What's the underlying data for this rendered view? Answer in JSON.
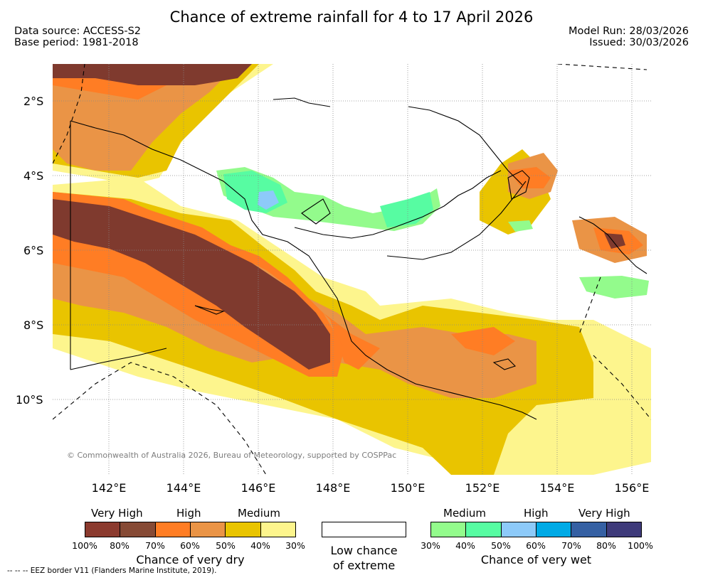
{
  "title": "Chance of extreme rainfall for 4 to 17 April 2026",
  "meta": {
    "data_source": "Data source: ACCESS-S2",
    "base_period": "Base period: 1981-2018",
    "model_run": "Model Run: 28/03/2026",
    "issued": "Issued: 30/03/2026"
  },
  "map": {
    "lat_labels": [
      "2°S",
      "4°S",
      "6°S",
      "8°S",
      "10°S"
    ],
    "lon_labels": [
      "142°E",
      "144°E",
      "146°E",
      "148°E",
      "150°E",
      "152°E",
      "154°E",
      "156°E"
    ],
    "copyright": "© Commonwealth of Australia 2026, Bureau of Meteorology, supported by COSPPac"
  },
  "legend": {
    "dry": {
      "levels": [
        "Very High",
        "High",
        "Medium"
      ],
      "colors": [
        "#8b3a2e",
        "#864a35",
        "#ff7d24",
        "#ea9446",
        "#e9c400",
        "#fdf58d"
      ],
      "ticks": [
        "100%",
        "80%",
        "70%",
        "60%",
        "50%",
        "40%",
        "30%"
      ],
      "caption": "Chance of very dry"
    },
    "neutral": {
      "caption_line1": "Low chance",
      "caption_line2": "of extreme"
    },
    "wet": {
      "levels": [
        "Medium",
        "High",
        "Very High"
      ],
      "colors": [
        "#93fb8c",
        "#57fca2",
        "#8dcaf9",
        "#00aae6",
        "#3560a3",
        "#3e3a7a"
      ],
      "ticks": [
        "30%",
        "40%",
        "50%",
        "60%",
        "70%",
        "80%",
        "100%"
      ],
      "caption": "Chance of very wet"
    }
  },
  "footnote": "--  --  -- EEZ border V11 (Flanders Marine Institute, 2019).",
  "colors": {
    "very_high_dry": "#7f3a2e",
    "high_dry": "#ff7d24",
    "medium_dry": "#e9c400",
    "low_dry": "#fdf58d",
    "medium_wet": "#57fca2",
    "high_wet": "#8dcaf9"
  }
}
